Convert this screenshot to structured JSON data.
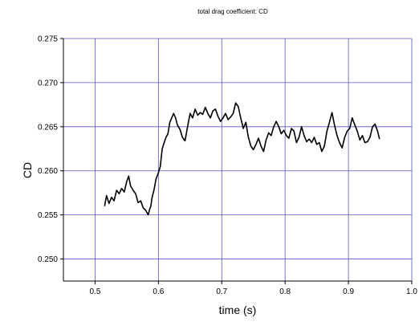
{
  "chart_data": {
    "type": "line",
    "title": "total drag coefficient:  CD",
    "xlabel": "time (s)",
    "ylabel": "CD",
    "xlim": [
      0.45,
      1.0
    ],
    "ylim": [
      0.2475,
      0.275
    ],
    "x_ticks": [
      "0.5",
      "0.6",
      "0.7",
      "0.8",
      "0.9",
      "1.0"
    ],
    "y_ticks": [
      "0.250",
      "0.255",
      "0.260",
      "0.265",
      "0.270",
      "0.275"
    ],
    "grid": true,
    "grid_color": "#5555cc",
    "line_color": "#000000",
    "series": [
      {
        "x": [
          0.515,
          0.518,
          0.522,
          0.526,
          0.53,
          0.534,
          0.538,
          0.542,
          0.546,
          0.55,
          0.553,
          0.556,
          0.56,
          0.564,
          0.568,
          0.572,
          0.576,
          0.58,
          0.584,
          0.586,
          0.588,
          0.59,
          0.593,
          0.596,
          0.6,
          0.603,
          0.606,
          0.609,
          0.612,
          0.615,
          0.618,
          0.621,
          0.624,
          0.627,
          0.63,
          0.634,
          0.638,
          0.642,
          0.646,
          0.65,
          0.654,
          0.658,
          0.662,
          0.666,
          0.67,
          0.674,
          0.678,
          0.682,
          0.686,
          0.69,
          0.694,
          0.698,
          0.702,
          0.706,
          0.71,
          0.714,
          0.718,
          0.722,
          0.726,
          0.73,
          0.734,
          0.738,
          0.742,
          0.746,
          0.75,
          0.754,
          0.758,
          0.762,
          0.766,
          0.77,
          0.774,
          0.778,
          0.782,
          0.786,
          0.79,
          0.794,
          0.798,
          0.802,
          0.806,
          0.81,
          0.814,
          0.818,
          0.822,
          0.826,
          0.83,
          0.834,
          0.838,
          0.842,
          0.846,
          0.85,
          0.854,
          0.858,
          0.862,
          0.866,
          0.87,
          0.874,
          0.878,
          0.882,
          0.886,
          0.89,
          0.894,
          0.898,
          0.902,
          0.906,
          0.91,
          0.914,
          0.918,
          0.922,
          0.926,
          0.93,
          0.934,
          0.938,
          0.942,
          0.946,
          0.949
        ],
        "y": [
          0.256,
          0.2572,
          0.2563,
          0.257,
          0.2566,
          0.2578,
          0.2574,
          0.258,
          0.2576,
          0.2588,
          0.2594,
          0.2583,
          0.2578,
          0.2574,
          0.2564,
          0.2566,
          0.2558,
          0.2555,
          0.255,
          0.2556,
          0.256,
          0.257,
          0.2578,
          0.259,
          0.2598,
          0.2605,
          0.2625,
          0.2632,
          0.2638,
          0.2642,
          0.2655,
          0.266,
          0.2665,
          0.266,
          0.2652,
          0.2647,
          0.2638,
          0.2634,
          0.265,
          0.2665,
          0.266,
          0.267,
          0.2663,
          0.2666,
          0.2664,
          0.2672,
          0.2665,
          0.266,
          0.2668,
          0.267,
          0.2662,
          0.2656,
          0.266,
          0.2665,
          0.2658,
          0.2661,
          0.2665,
          0.2677,
          0.2673,
          0.266,
          0.2648,
          0.2655,
          0.2638,
          0.2628,
          0.2624,
          0.263,
          0.2637,
          0.2628,
          0.2622,
          0.2635,
          0.2643,
          0.264,
          0.265,
          0.2656,
          0.265,
          0.2642,
          0.2646,
          0.264,
          0.2637,
          0.2648,
          0.2645,
          0.2632,
          0.2638,
          0.265,
          0.264,
          0.2633,
          0.2636,
          0.2632,
          0.2638,
          0.263,
          0.2632,
          0.2622,
          0.2628,
          0.2645,
          0.2655,
          0.2666,
          0.2652,
          0.264,
          0.2632,
          0.2626,
          0.2638,
          0.2645,
          0.2648,
          0.266,
          0.2652,
          0.2645,
          0.2635,
          0.264,
          0.2632,
          0.2633,
          0.2638,
          0.265,
          0.2653,
          0.2645,
          0.2636
        ]
      }
    ]
  }
}
